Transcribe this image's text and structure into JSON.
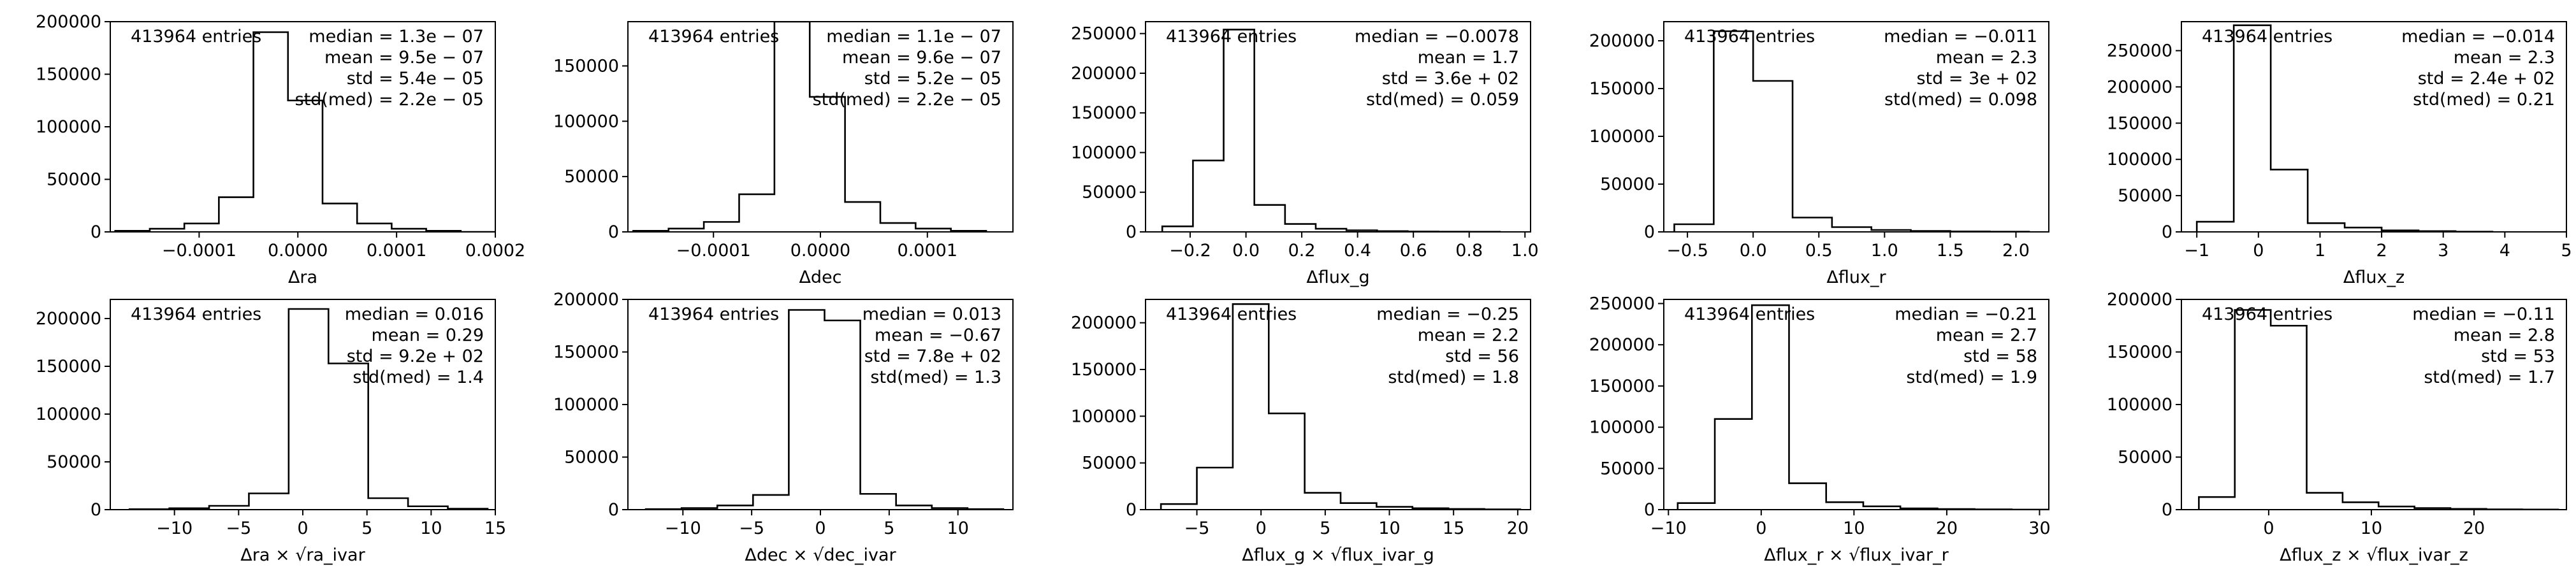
{
  "chart_data": [
    {
      "type": "histogram",
      "xlabel": "Δra",
      "xlim": [
        -0.00019,
        0.0002
      ],
      "ylim": [
        0,
        200000
      ],
      "xticks": [
        -0.0001,
        0.0,
        0.0001,
        0.0002
      ],
      "xtick_labels": [
        "−0.0001",
        "0.0000",
        "0.0001",
        "0.0002"
      ],
      "yticks": [
        0,
        50000,
        100000,
        150000,
        200000
      ],
      "ytick_labels": [
        "0",
        "50000",
        "100000",
        "150000",
        "200000"
      ],
      "bin_edges": [
        -0.000185,
        -0.00015,
        -0.000115,
        -8e-05,
        -4.5e-05,
        -1e-05,
        2.5e-05,
        6e-05,
        9.5e-05,
        0.00013,
        0.000165,
        0.0002
      ],
      "counts": [
        1000,
        3000,
        8000,
        33000,
        190000,
        125000,
        27000,
        8000,
        3000,
        1000,
        0
      ],
      "entries_label": "413964 entries",
      "stats": [
        "median = 1.3e − 07",
        "mean = 9.5e − 07",
        "std = 5.4e − 05",
        "std(med) = 2.2e − 05"
      ]
    },
    {
      "type": "histogram",
      "xlabel": "Δdec",
      "xlim": [
        -0.00018,
        0.00018
      ],
      "ylim": [
        0,
        190000
      ],
      "xticks": [
        -0.0001,
        0.0,
        0.0001
      ],
      "xtick_labels": [
        "−0.0001",
        "0.0000",
        "0.0001"
      ],
      "yticks": [
        0,
        50000,
        100000,
        150000
      ],
      "ytick_labels": [
        "0",
        "50000",
        "100000",
        "150000"
      ],
      "bin_edges": [
        -0.000175,
        -0.000142,
        -0.000109,
        -7.6e-05,
        -4.3e-05,
        -1e-05,
        2.3e-05,
        5.6e-05,
        8.9e-05,
        0.000122,
        0.000155
      ],
      "counts": [
        1000,
        3000,
        9000,
        34000,
        190000,
        122000,
        27000,
        8000,
        3000,
        1000
      ],
      "entries_label": "413964 entries",
      "stats": [
        "median = 1.1e − 07",
        "mean = 9.6e − 07",
        "std = 5.2e − 05",
        "std(med) = 2.2e − 05"
      ]
    },
    {
      "type": "histogram",
      "xlabel": "Δflux_g",
      "xlim": [
        -0.36,
        1.02
      ],
      "ylim": [
        0,
        265000
      ],
      "xticks": [
        -0.2,
        0.0,
        0.2,
        0.4,
        0.6,
        0.8,
        1.0
      ],
      "xtick_labels": [
        "−0.2",
        "0.0",
        "0.2",
        "0.4",
        "0.6",
        "0.8",
        "1.0"
      ],
      "yticks": [
        0,
        50000,
        100000,
        150000,
        200000,
        250000
      ],
      "ytick_labels": [
        "0",
        "50000",
        "100000",
        "150000",
        "200000",
        "250000"
      ],
      "bin_edges": [
        -0.3,
        -0.19,
        -0.08,
        0.03,
        0.14,
        0.25,
        0.36,
        0.47,
        0.58,
        0.69,
        0.8,
        0.91
      ],
      "counts": [
        7000,
        90000,
        255000,
        34000,
        10000,
        4000,
        2000,
        1000,
        500,
        300,
        200
      ],
      "entries_label": "413964 entries",
      "stats": [
        "median = −0.0078",
        "mean = 1.7",
        "std = 3.6e + 02",
        "std(med) = 0.059"
      ]
    },
    {
      "type": "histogram",
      "xlabel": "Δflux_r",
      "xlim": [
        -0.68,
        2.25
      ],
      "ylim": [
        0,
        220000
      ],
      "xticks": [
        -0.5,
        0.0,
        0.5,
        1.0,
        1.5,
        2.0
      ],
      "xtick_labels": [
        "−0.5",
        "0.0",
        "0.5",
        "1.0",
        "1.5",
        "2.0"
      ],
      "yticks": [
        0,
        50000,
        100000,
        150000,
        200000
      ],
      "ytick_labels": [
        "0",
        "50000",
        "100000",
        "150000",
        "200000"
      ],
      "bin_edges": [
        -0.6,
        -0.3,
        0.0,
        0.3,
        0.6,
        0.9,
        1.2,
        1.5,
        1.8,
        2.1
      ],
      "counts": [
        8000,
        210000,
        158000,
        15000,
        5000,
        2000,
        1000,
        500,
        200
      ],
      "entries_label": "413964 entries",
      "stats": [
        "median = −0.011",
        "mean = 2.3",
        "std = 3e + 02",
        "std(med) = 0.098"
      ]
    },
    {
      "type": "histogram",
      "xlabel": "Δflux_z",
      "xlim": [
        -1.25,
        5.0
      ],
      "ylim": [
        0,
        290000
      ],
      "xticks": [
        -1,
        0,
        1,
        2,
        3,
        4,
        5
      ],
      "xtick_labels": [
        "−1",
        "0",
        "1",
        "2",
        "3",
        "4",
        "5"
      ],
      "yticks": [
        0,
        50000,
        100000,
        150000,
        200000,
        250000
      ],
      "ytick_labels": [
        "0",
        "50000",
        "100000",
        "150000",
        "200000",
        "250000"
      ],
      "bin_edges": [
        -1.0,
        -0.4,
        0.2,
        0.8,
        1.4,
        2.0,
        2.6,
        3.2,
        3.8
      ],
      "counts": [
        14000,
        285000,
        86000,
        12000,
        6000,
        2000,
        1000,
        300
      ],
      "entries_label": "413964 entries",
      "stats": [
        "median = −0.014",
        "mean = 2.3",
        "std = 2.4e + 02",
        "std(med) = 0.21"
      ]
    },
    {
      "type": "histogram",
      "xlabel": "Δra × √ra_ivar",
      "xlim": [
        -15,
        15
      ],
      "ylim": [
        0,
        220000
      ],
      "xticks": [
        -10,
        -5,
        0,
        5,
        10,
        15
      ],
      "xtick_labels": [
        "−10",
        "−5",
        "0",
        "5",
        "10",
        "15"
      ],
      "yticks": [
        0,
        50000,
        100000,
        150000,
        200000
      ],
      "ytick_labels": [
        "0",
        "50000",
        "100000",
        "150000",
        "200000"
      ],
      "bin_edges": [
        -13.5,
        -10.4,
        -7.3,
        -4.2,
        -1.1,
        2.0,
        5.1,
        8.2,
        11.3,
        14.4
      ],
      "counts": [
        500,
        1500,
        4000,
        17000,
        210000,
        153000,
        12000,
        3500,
        1000
      ],
      "entries_label": "413964 entries",
      "stats": [
        "median = 0.016",
        "mean = 0.29",
        "std = 9.2e + 02",
        "std(med) = 1.4"
      ]
    },
    {
      "type": "histogram",
      "xlabel": "Δdec × √dec_ivar",
      "xlim": [
        -14,
        14
      ],
      "ylim": [
        0,
        200000
      ],
      "xticks": [
        -10,
        -5,
        0,
        5,
        10
      ],
      "xtick_labels": [
        "−10",
        "−5",
        "0",
        "5",
        "10"
      ],
      "yticks": [
        0,
        50000,
        100000,
        150000,
        200000
      ],
      "ytick_labels": [
        "0",
        "50000",
        "100000",
        "150000",
        "200000"
      ],
      "bin_edges": [
        -12.7,
        -10.1,
        -7.5,
        -4.9,
        -2.3,
        0.3,
        2.9,
        5.5,
        8.1,
        10.7,
        13.3
      ],
      "counts": [
        500,
        1500,
        4000,
        14000,
        190000,
        180000,
        15000,
        4000,
        1500,
        500
      ],
      "entries_label": "413964 entries",
      "stats": [
        "median = 0.013",
        "mean = −0.67",
        "std = 7.8e + 02",
        "std(med) = 1.3"
      ]
    },
    {
      "type": "histogram",
      "xlabel": "Δflux_g × √flux_ivar_g",
      "xlim": [
        -9,
        21
      ],
      "ylim": [
        0,
        225000
      ],
      "xticks": [
        -5,
        0,
        5,
        10,
        15,
        20
      ],
      "xtick_labels": [
        "−5",
        "0",
        "5",
        "10",
        "15",
        "20"
      ],
      "yticks": [
        0,
        50000,
        100000,
        150000,
        200000
      ],
      "ytick_labels": [
        "0",
        "50000",
        "100000",
        "150000",
        "200000"
      ],
      "bin_edges": [
        -7.8,
        -5.0,
        -2.2,
        0.6,
        3.4,
        6.2,
        9.0,
        11.8,
        14.6,
        17.4,
        20.2
      ],
      "counts": [
        6000,
        45000,
        220000,
        103000,
        18000,
        7000,
        3000,
        1500,
        700,
        300
      ],
      "entries_label": "413964 entries",
      "stats": [
        "median = −0.25",
        "mean = 2.2",
        "std = 56",
        "std(med) = 1.8"
      ]
    },
    {
      "type": "histogram",
      "xlabel": "Δflux_r × √flux_ivar_r",
      "xlim": [
        -10.5,
        31
      ],
      "ylim": [
        0,
        255000
      ],
      "xticks": [
        -10,
        0,
        10,
        20,
        30
      ],
      "xtick_labels": [
        "−10",
        "0",
        "10",
        "20",
        "30"
      ],
      "yticks": [
        0,
        50000,
        100000,
        150000,
        200000,
        250000
      ],
      "ytick_labels": [
        "0",
        "50000",
        "100000",
        "150000",
        "200000",
        "250000"
      ],
      "bin_edges": [
        -9.0,
        -5.0,
        -1.0,
        3.0,
        7.0,
        11.0,
        15.0,
        19.0,
        23.0,
        27.0,
        31.0
      ],
      "counts": [
        8000,
        110000,
        248000,
        32000,
        9000,
        4000,
        1500,
        700,
        300,
        100
      ],
      "entries_label": "413964 entries",
      "stats": [
        "median = −0.21",
        "mean = 2.7",
        "std = 58",
        "std(med) = 1.9"
      ]
    },
    {
      "type": "histogram",
      "xlabel": "Δflux_z × √flux_ivar_z",
      "xlim": [
        -8.5,
        29
      ],
      "ylim": [
        0,
        200000
      ],
      "xticks": [
        0,
        10,
        20
      ],
      "xtick_labels": [
        "0",
        "10",
        "20"
      ],
      "yticks": [
        0,
        50000,
        100000,
        150000,
        200000
      ],
      "ytick_labels": [
        "0",
        "50000",
        "100000",
        "150000",
        "200000"
      ],
      "bin_edges": [
        -6.8,
        -3.3,
        0.2,
        3.7,
        7.2,
        10.7,
        14.2,
        17.7,
        21.2,
        24.7,
        28.2
      ],
      "counts": [
        12000,
        190000,
        175000,
        16000,
        7000,
        3000,
        1500,
        700,
        300,
        100
      ],
      "entries_label": "413964 entries",
      "stats": [
        "median = −0.11",
        "mean = 2.8",
        "std = 53",
        "std(med) = 1.7"
      ]
    }
  ]
}
